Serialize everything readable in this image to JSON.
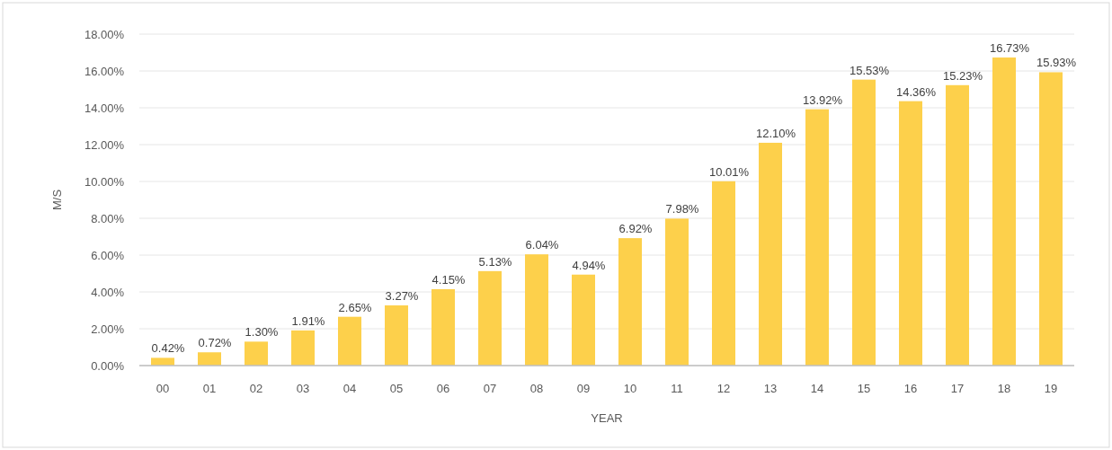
{
  "chart_data": {
    "type": "bar",
    "xlabel": "YEAR",
    "ylabel": "M/S",
    "categories": [
      "00",
      "01",
      "02",
      "03",
      "04",
      "05",
      "06",
      "07",
      "08",
      "09",
      "10",
      "11",
      "12",
      "13",
      "14",
      "15",
      "16",
      "17",
      "18",
      "19"
    ],
    "values": [
      0.42,
      0.72,
      1.3,
      1.91,
      2.65,
      3.27,
      4.15,
      5.13,
      6.04,
      4.94,
      6.92,
      7.98,
      10.01,
      12.1,
      13.92,
      15.53,
      14.36,
      15.23,
      16.73,
      15.93
    ],
    "value_labels": [
      "0.42%",
      "0.72%",
      "1.30%",
      "1.91%",
      "2.65%",
      "3.27%",
      "4.15%",
      "5.13%",
      "6.04%",
      "4.94%",
      "6.92%",
      "7.98%",
      "10.01%",
      "12.10%",
      "13.92%",
      "15.53%",
      "14.36%",
      "15.23%",
      "16.73%",
      "15.93%"
    ],
    "color": "#fdd04b",
    "ylim": [
      0,
      18
    ],
    "yticks": [
      {
        "value": 0,
        "label": "0.00%"
      },
      {
        "value": 2,
        "label": "2.00%"
      },
      {
        "value": 4,
        "label": "4.00%"
      },
      {
        "value": 6,
        "label": "6.00%"
      },
      {
        "value": 8,
        "label": "8.00%"
      },
      {
        "value": 10,
        "label": "10.00%"
      },
      {
        "value": 12,
        "label": "12.00%"
      },
      {
        "value": 14,
        "label": "14.00%"
      },
      {
        "value": 16,
        "label": "16.00%"
      },
      {
        "value": 18,
        "label": "18.00%"
      }
    ],
    "grid": "y"
  }
}
